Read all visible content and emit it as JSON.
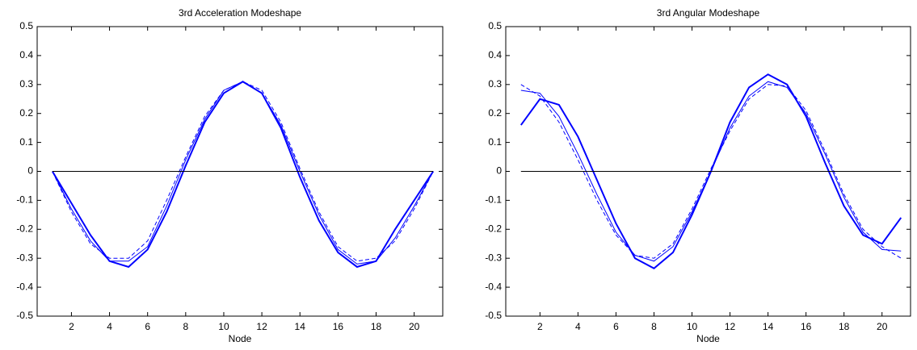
{
  "chart_data": [
    {
      "type": "line",
      "title": "3rd Acceleration Modeshape",
      "xlabel": "Node",
      "x": [
        1,
        2,
        3,
        4,
        5,
        6,
        7,
        8,
        9,
        10,
        11,
        12,
        13,
        14,
        15,
        16,
        17,
        18,
        19,
        20,
        21
      ],
      "xlim": [
        0.2,
        21.5
      ],
      "xticks": [
        2,
        4,
        6,
        8,
        10,
        12,
        14,
        16,
        18,
        20
      ],
      "ylim": [
        -0.5,
        0.5
      ],
      "yticks": [
        -0.5,
        -0.4,
        -0.3,
        -0.2,
        -0.1,
        0,
        0.1,
        0.2,
        0.3,
        0.4,
        0.5
      ],
      "series": [
        {
          "color": "#0000ff",
          "width": 2,
          "dash": "solid",
          "values": [
            0,
            -0.11,
            -0.22,
            -0.31,
            -0.33,
            -0.27,
            -0.14,
            0.02,
            0.17,
            0.27,
            0.31,
            0.27,
            0.15,
            -0.02,
            -0.17,
            -0.28,
            -0.33,
            -0.31,
            -0.2,
            -0.1,
            0
          ]
        },
        {
          "color": "#0000ff",
          "width": 1,
          "dash": "solid",
          "values": [
            0,
            -0.13,
            -0.24,
            -0.31,
            -0.31,
            -0.26,
            -0.12,
            0.04,
            0.18,
            0.28,
            0.31,
            0.27,
            0.16,
            0,
            -0.15,
            -0.27,
            -0.32,
            -0.31,
            -0.23,
            -0.12,
            0
          ]
        },
        {
          "color": "#0000ff",
          "width": 1,
          "dash": "dashed",
          "values": [
            0,
            -0.14,
            -0.25,
            -0.3,
            -0.3,
            -0.24,
            -0.1,
            0.05,
            0.19,
            0.28,
            0.31,
            0.28,
            0.17,
            0.01,
            -0.14,
            -0.26,
            -0.31,
            -0.3,
            -0.24,
            -0.13,
            0
          ]
        },
        {
          "color": "#000000",
          "width": 1,
          "dash": "solid",
          "values": [
            0,
            0,
            0,
            0,
            0,
            0,
            0,
            0,
            0,
            0,
            0,
            0,
            0,
            0,
            0,
            0,
            0,
            0,
            0,
            0,
            0
          ]
        }
      ]
    },
    {
      "type": "line",
      "title": "3rd Angular Modeshape",
      "xlabel": "Node",
      "x": [
        1,
        2,
        3,
        4,
        5,
        6,
        7,
        8,
        9,
        10,
        11,
        12,
        13,
        14,
        15,
        16,
        17,
        18,
        19,
        20,
        21
      ],
      "xlim": [
        0.2,
        21.5
      ],
      "xticks": [
        2,
        4,
        6,
        8,
        10,
        12,
        14,
        16,
        18,
        20
      ],
      "ylim": [
        -0.5,
        0.5
      ],
      "yticks": [
        -0.5,
        -0.4,
        -0.3,
        -0.2,
        -0.1,
        0,
        0.1,
        0.2,
        0.3,
        0.4,
        0.5
      ],
      "series": [
        {
          "color": "#0000ff",
          "width": 2,
          "dash": "solid",
          "values": [
            0.16,
            0.25,
            0.23,
            0.12,
            -0.03,
            -0.18,
            -0.3,
            -0.335,
            -0.28,
            -0.15,
            0,
            0.17,
            0.29,
            0.335,
            0.3,
            0.19,
            0.03,
            -0.12,
            -0.22,
            -0.25,
            -0.16
          ]
        },
        {
          "color": "#0000ff",
          "width": 1,
          "dash": "solid",
          "values": [
            0.28,
            0.27,
            0.19,
            0.06,
            -0.08,
            -0.21,
            -0.29,
            -0.31,
            -0.26,
            -0.14,
            0,
            0.15,
            0.26,
            0.31,
            0.29,
            0.2,
            0.06,
            -0.09,
            -0.21,
            -0.27,
            -0.275
          ]
        },
        {
          "color": "#0000ff",
          "width": 1,
          "dash": "dashed",
          "values": [
            0.3,
            0.26,
            0.17,
            0.04,
            -0.1,
            -0.22,
            -0.29,
            -0.3,
            -0.25,
            -0.13,
            0.01,
            0.14,
            0.25,
            0.3,
            0.295,
            0.21,
            0.07,
            -0.08,
            -0.2,
            -0.26,
            -0.3
          ]
        },
        {
          "color": "#000000",
          "width": 1,
          "dash": "solid",
          "values": [
            0,
            0,
            0,
            0,
            0,
            0,
            0,
            0,
            0,
            0,
            0,
            0,
            0,
            0,
            0,
            0,
            0,
            0,
            0,
            0,
            0
          ]
        }
      ]
    }
  ]
}
